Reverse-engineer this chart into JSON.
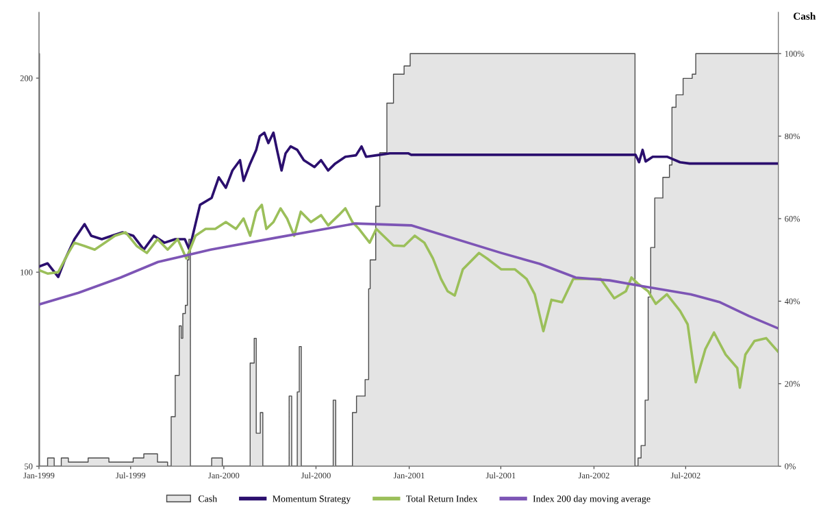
{
  "chart_data": {
    "type": "line",
    "y2label": "Cash",
    "log": "y",
    "grid": false,
    "legend": "bottom",
    "xlim": [
      "1999-01-01",
      "2002-12-31"
    ],
    "xticks": [
      {
        "value": "1999-01-01",
        "label": "Jan-1999"
      },
      {
        "value": "1999-07-01",
        "label": "Jul-1999"
      },
      {
        "value": "2000-01-01",
        "label": "Jan-2000"
      },
      {
        "value": "2000-07-01",
        "label": "Jul-2000"
      },
      {
        "value": "2001-01-01",
        "label": "Jan-2001"
      },
      {
        "value": "2001-07-01",
        "label": "Jul-2001"
      },
      {
        "value": "2002-01-01",
        "label": "Jan-2002"
      },
      {
        "value": "2002-07-01",
        "label": "Jul-2002"
      }
    ],
    "ylim": [
      50,
      253
    ],
    "yticks": [
      50,
      100,
      200
    ],
    "y2lim": [
      0,
      110
    ],
    "y2ticks": [
      {
        "value": 0,
        "label": "0%"
      },
      {
        "value": 20,
        "label": "20%"
      },
      {
        "value": 40,
        "label": "40%"
      },
      {
        "value": 60,
        "label": "60%"
      },
      {
        "value": 80,
        "label": "80%"
      },
      {
        "value": 100,
        "label": "100%"
      }
    ],
    "series": [
      {
        "name": "Cash",
        "type": "area",
        "axis": "y2",
        "color": "#e4e4e4",
        "x": [
          "1999-01-01",
          "1999-01-02",
          "1999-01-18",
          "1999-01-31",
          "1999-02-14",
          "1999-02-28",
          "1999-04-08",
          "1999-05-19",
          "1999-07-06",
          "1999-07-27",
          "1999-08-23",
          "1999-09-12",
          "1999-09-19",
          "1999-09-27",
          "1999-10-05",
          "1999-10-09",
          "1999-10-12",
          "1999-10-17",
          "1999-10-21",
          "1999-10-24",
          "1999-10-27",
          "1999-12-08",
          "1999-12-29",
          "2000-02-22",
          "2000-03-01",
          "2000-03-05",
          "2000-03-13",
          "2000-03-18",
          "2000-05-09",
          "2000-05-14",
          "2000-05-25",
          "2000-05-29",
          "2000-06-02",
          "2000-08-04",
          "2000-08-09",
          "2000-09-11",
          "2000-09-19",
          "2000-10-06",
          "2000-10-13",
          "2000-10-16",
          "2000-10-27",
          "2000-11-04",
          "2000-11-18",
          "2000-12-01",
          "2000-12-22",
          "2001-01-03",
          "2002-03-23",
          "2002-03-29",
          "2002-04-04",
          "2002-04-12",
          "2002-04-18",
          "2002-04-23",
          "2002-05-01",
          "2002-05-17",
          "2002-05-30",
          "2002-06-04",
          "2002-06-12",
          "2002-06-26",
          "2002-07-14",
          "2002-07-21",
          "2002-12-31"
        ],
        "values": [
          100,
          0,
          2,
          0,
          2,
          1,
          2,
          1,
          2,
          3,
          1,
          0,
          12,
          22,
          34,
          31,
          37,
          39,
          50,
          55,
          0,
          2,
          0,
          25,
          31,
          8,
          13,
          0,
          17,
          0,
          18,
          29,
          0,
          16,
          0,
          13,
          17,
          21,
          43,
          50,
          63,
          76,
          88,
          95,
          97,
          100,
          0,
          2,
          5,
          16,
          41,
          53,
          65,
          70,
          73,
          87,
          90,
          94,
          95,
          100,
          100
        ]
      },
      {
        "name": "Momentum Strategy",
        "color": "#2b0f6e",
        "x": [
          "1999-01-01",
          "1999-01-18",
          "1999-02-08",
          "1999-02-21",
          "1999-03-12",
          "1999-04-01",
          "1999-04-14",
          "1999-05-05",
          "1999-05-25",
          "1999-06-15",
          "1999-07-06",
          "1999-07-27",
          "1999-08-16",
          "1999-09-06",
          "1999-09-27",
          "1999-10-16",
          "1999-10-25",
          "1999-11-15",
          "1999-12-08",
          "1999-12-22",
          "2000-01-05",
          "2000-01-18",
          "2000-02-02",
          "2000-02-09",
          "2000-02-22",
          "2000-03-05",
          "2000-03-12",
          "2000-03-21",
          "2000-03-29",
          "2000-04-08",
          "2000-04-15",
          "2000-04-24",
          "2000-05-02",
          "2000-05-12",
          "2000-05-25",
          "2000-06-07",
          "2000-06-28",
          "2000-07-11",
          "2000-07-25",
          "2000-08-08",
          "2000-08-28",
          "2000-09-18",
          "2000-09-29",
          "2000-10-08",
          "2000-10-28",
          "2000-11-24",
          "2000-12-30",
          "2001-01-05",
          "2002-03-24",
          "2002-03-31",
          "2002-04-07",
          "2002-04-13",
          "2002-04-27",
          "2002-05-26",
          "2002-06-20",
          "2002-07-09",
          "2002-12-31"
        ],
        "values": [
          102.0,
          103.2,
          98.3,
          104.5,
          112.5,
          118.7,
          113.9,
          112.5,
          113.9,
          115.3,
          113.9,
          108.4,
          113.9,
          111.1,
          112.5,
          112.5,
          108.4,
          127.2,
          130.4,
          140.3,
          135.2,
          143.8,
          149.2,
          138.6,
          147.4,
          154.8,
          162.6,
          164.6,
          158.6,
          164.6,
          154.8,
          143.8,
          152.9,
          156.7,
          154.8,
          149.2,
          145.6,
          149.2,
          143.8,
          147.4,
          151.0,
          151.8,
          156.7,
          151.0,
          151.8,
          152.9,
          152.9,
          152.1,
          152.1,
          148.1,
          154.8,
          148.5,
          151.0,
          151.0,
          148.1,
          147.4,
          147.4
        ]
      },
      {
        "name": "Total Return Index",
        "color": "#9bbf5a",
        "x": [
          "1999-01-01",
          "1999-01-18",
          "1999-02-08",
          "1999-02-28",
          "1999-03-12",
          "1999-04-01",
          "1999-04-21",
          "1999-05-11",
          "1999-05-31",
          "1999-06-21",
          "1999-07-13",
          "1999-08-02",
          "1999-08-23",
          "1999-09-12",
          "1999-10-02",
          "1999-10-19",
          "1999-11-06",
          "1999-11-26",
          "1999-12-15",
          "2000-01-05",
          "2000-01-25",
          "2000-02-09",
          "2000-02-22",
          "2000-03-05",
          "2000-03-16",
          "2000-03-25",
          "2000-04-08",
          "2000-04-22",
          "2000-05-05",
          "2000-05-19",
          "2000-06-01",
          "2000-06-21",
          "2000-07-11",
          "2000-07-25",
          "2000-08-15",
          "2000-08-28",
          "2000-09-11",
          "2000-09-24",
          "2000-10-15",
          "2000-10-28",
          "2000-11-11",
          "2000-12-01",
          "2000-12-22",
          "2001-01-12",
          "2001-01-31",
          "2001-02-17",
          "2001-03-05",
          "2001-03-18",
          "2001-04-01",
          "2001-04-17",
          "2001-05-19",
          "2001-06-04",
          "2001-07-02",
          "2001-07-29",
          "2001-08-21",
          "2001-09-06",
          "2001-09-23",
          "2001-10-09",
          "2001-10-30",
          "2001-11-21",
          "2001-12-24",
          "2002-01-14",
          "2002-02-10",
          "2002-03-05",
          "2002-03-16",
          "2002-03-28",
          "2002-04-18",
          "2002-05-03",
          "2002-05-25",
          "2002-06-20",
          "2002-07-05",
          "2002-07-21",
          "2002-08-09",
          "2002-08-26",
          "2002-09-18",
          "2002-10-11",
          "2002-10-16",
          "2002-10-27",
          "2002-11-14",
          "2002-12-07",
          "2002-12-31"
        ],
        "values": [
          100.7,
          99.5,
          100.0,
          107.1,
          111.1,
          109.8,
          108.4,
          111.1,
          113.9,
          115.3,
          109.8,
          107.1,
          112.5,
          108.4,
          112.5,
          105.0,
          113.9,
          116.7,
          116.7,
          119.6,
          116.7,
          121.1,
          113.9,
          124.1,
          127.2,
          116.7,
          119.6,
          125.6,
          121.1,
          113.9,
          124.1,
          119.6,
          122.6,
          118.2,
          122.6,
          125.6,
          119.6,
          116.7,
          111.1,
          116.7,
          113.9,
          110.0,
          109.8,
          113.9,
          111.1,
          105.0,
          97.6,
          93.4,
          92.0,
          101.0,
          107.1,
          105.0,
          101.0,
          101.0,
          97.6,
          92.4,
          81.0,
          90.6,
          89.8,
          97.6,
          97.6,
          97.6,
          91.1,
          93.4,
          98.1,
          96.1,
          93.4,
          89.3,
          92.4,
          87.1,
          83.0,
          67.5,
          76.0,
          80.6,
          74.5,
          71.0,
          66.2,
          74.5,
          78.2,
          79.0,
          75.2
        ]
      },
      {
        "name": "Index 200 day moving average",
        "color": "#7d55b5",
        "x": [
          "1999-01-01",
          "1999-03-20",
          "1999-06-11",
          "1999-08-24",
          "1999-12-06",
          "2000-04-13",
          "2000-09-17",
          "2001-01-05",
          "2001-07-02",
          "2001-09-16",
          "2001-11-26",
          "2002-02-01",
          "2002-04-04",
          "2002-07-11",
          "2002-09-07",
          "2002-11-03",
          "2002-12-31"
        ],
        "values": [
          89.1,
          92.9,
          98.1,
          103.7,
          108.4,
          113.1,
          119.0,
          118.2,
          107.1,
          103.0,
          98.1,
          97.1,
          95.2,
          92.4,
          89.8,
          85.5,
          81.8
        ]
      }
    ]
  }
}
